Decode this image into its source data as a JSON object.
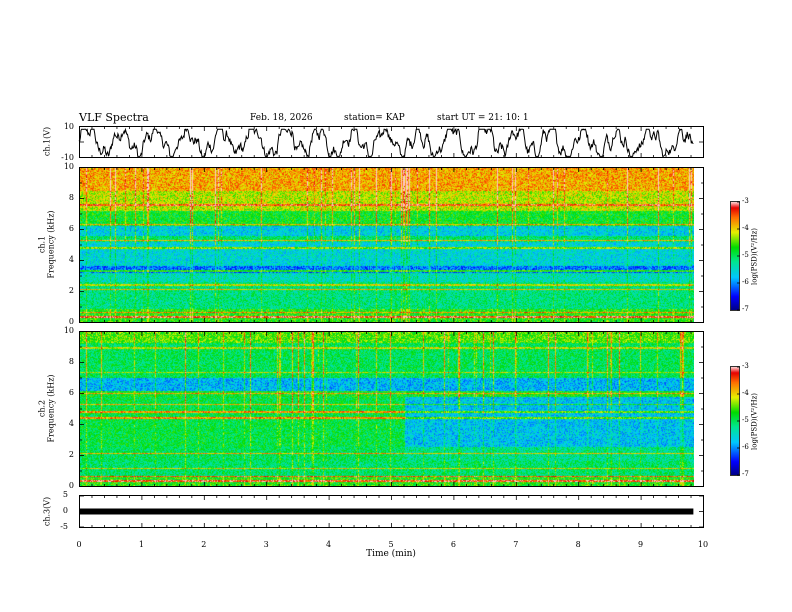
{
  "header": {
    "title": "VLF Spectra",
    "date": "Feb. 18, 2026",
    "station": "station= KAP",
    "start": "start  UT =   21: 10: 1"
  },
  "chart_data": [
    {
      "type": "line",
      "name": "ch1-waveform",
      "ylabel": "ch.1(V)",
      "ylim": [
        -10,
        10
      ],
      "ytick_labels": [
        "10",
        "-10"
      ],
      "xlim": [
        0,
        10
      ],
      "data_xmax": 9.83,
      "description_values": "noisy waveform oscillating roughly between -8 and 6 V"
    },
    {
      "type": "heatmap",
      "name": "ch1-spectrogram",
      "ylabel": "ch.1",
      "ylabel2": "Frequency (kHz)",
      "ylim": [
        0,
        10
      ],
      "ytick_labels": [
        "0",
        "2",
        "4",
        "6",
        "8",
        "10"
      ],
      "xlim": [
        0,
        10
      ],
      "data_xmax": 9.83,
      "colorbar": {
        "label": "log(PSD)(V²/Hz)",
        "range": [
          -7,
          -3
        ],
        "tick_labels": [
          "-3",
          "-4",
          "-5",
          "-6",
          "-7"
        ]
      }
    },
    {
      "type": "heatmap",
      "name": "ch2-spectrogram",
      "ylabel": "ch.2",
      "ylabel2": "Frequency (kHz)",
      "ylim": [
        0,
        10
      ],
      "ytick_labels": [
        "0",
        "2",
        "4",
        "6",
        "8",
        "10"
      ],
      "xlim": [
        0,
        10
      ],
      "data_xmax": 9.83,
      "change_time_min": 5.2,
      "colorbar": {
        "label": "log(PSD)(V²/Hz)",
        "range": [
          -7,
          -3
        ],
        "tick_labels": [
          "-3",
          "-4",
          "-5",
          "-6",
          "-7"
        ]
      }
    },
    {
      "type": "line",
      "name": "ch3-waveform",
      "ylabel": "ch.3(V)",
      "ylim": [
        -5,
        5
      ],
      "ytick_labels": [
        "5",
        "0",
        "-5"
      ],
      "xlim": [
        0,
        10
      ],
      "data_xmax": 9.83,
      "level": 0,
      "xlabel": "Time (min)",
      "xtick_labels": [
        "0",
        "1",
        "2",
        "3",
        "4",
        "5",
        "6",
        "7",
        "8",
        "9",
        "10"
      ]
    }
  ],
  "colors": {
    "frame": "#000000",
    "trace": "#000000"
  }
}
